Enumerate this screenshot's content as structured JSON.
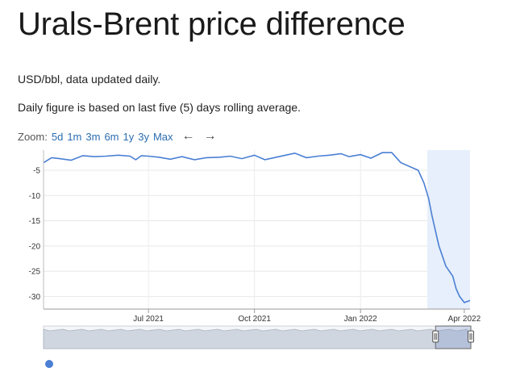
{
  "page": {
    "title": "Urals-Brent price difference",
    "line1": "USD/bbl, data updated daily.",
    "line2": "Daily figure is based on last five (5) days rolling average."
  },
  "zoom": {
    "label": "Zoom:",
    "buttons": [
      "5d",
      "1m",
      "3m",
      "6m",
      "1y",
      "3y",
      "Max"
    ],
    "prev_icon": "arrow-left-icon",
    "next_icon": "arrow-right-icon"
  },
  "colors": {
    "line": "#4a7fd4",
    "selection_fill": "#e6effb",
    "navigator_fill": "#cfd6e0"
  },
  "chart_data": {
    "type": "line",
    "title": "",
    "xlabel": "",
    "ylabel": "",
    "x_tick_labels": [
      "Jul 2021",
      "Oct 2021",
      "Jan 2022",
      "Apr 2022"
    ],
    "x_tick_dates": [
      "2021-07-01",
      "2021-10-01",
      "2022-01-01",
      "2022-04-01"
    ],
    "y_ticks": [
      -5,
      -10,
      -15,
      -20,
      -25,
      -30
    ],
    "ylim": [
      -32.5,
      -1.0
    ],
    "xlim": [
      "2021-04-01",
      "2022-04-06"
    ],
    "grid": "horizontal",
    "selected_range_start": "2022-02-28",
    "series": [
      {
        "x": [
          "2021-04-01",
          "2021-04-08",
          "2021-04-15",
          "2021-04-25",
          "2021-05-05",
          "2021-05-15",
          "2021-05-25",
          "2021-06-05",
          "2021-06-15",
          "2021-06-20",
          "2021-06-25",
          "2021-07-01",
          "2021-07-10",
          "2021-07-20",
          "2021-07-30",
          "2021-08-10",
          "2021-08-20",
          "2021-09-01",
          "2021-09-10",
          "2021-09-20",
          "2021-10-01",
          "2021-10-10",
          "2021-10-20",
          "2021-10-28",
          "2021-11-05",
          "2021-11-15",
          "2021-11-25",
          "2021-12-05",
          "2021-12-15",
          "2021-12-22",
          "2022-01-01",
          "2022-01-10",
          "2022-01-20",
          "2022-01-28",
          "2022-02-05",
          "2022-02-15",
          "2022-02-20",
          "2022-02-25",
          "2022-03-01",
          "2022-03-04",
          "2022-03-07",
          "2022-03-10",
          "2022-03-13",
          "2022-03-16",
          "2022-03-19",
          "2022-03-22",
          "2022-03-25",
          "2022-03-28",
          "2022-04-01",
          "2022-04-06"
        ],
        "y": [
          -3.5,
          -2.5,
          -2.7,
          -3.0,
          -2.1,
          -2.3,
          -2.2,
          -2.0,
          -2.2,
          -2.9,
          -2.1,
          -2.2,
          -2.4,
          -2.8,
          -2.3,
          -2.9,
          -2.5,
          -2.4,
          -2.2,
          -2.7,
          -2.0,
          -2.9,
          -2.4,
          -2.0,
          -1.6,
          -2.5,
          -2.2,
          -2.0,
          -1.7,
          -2.3,
          -1.9,
          -2.6,
          -1.5,
          -1.5,
          -3.5,
          -4.5,
          -5.0,
          -7.5,
          -10.5,
          -14.0,
          -17.0,
          -20.0,
          -22.0,
          -24.0,
          -25.0,
          -26.0,
          -28.5,
          -30.0,
          -31.2,
          -30.8
        ]
      }
    ],
    "navigator": {
      "x_range": [
        "2010-01-01",
        "2022-04-06"
      ],
      "selection": [
        "2021-04-01",
        "2022-04-06"
      ]
    }
  }
}
